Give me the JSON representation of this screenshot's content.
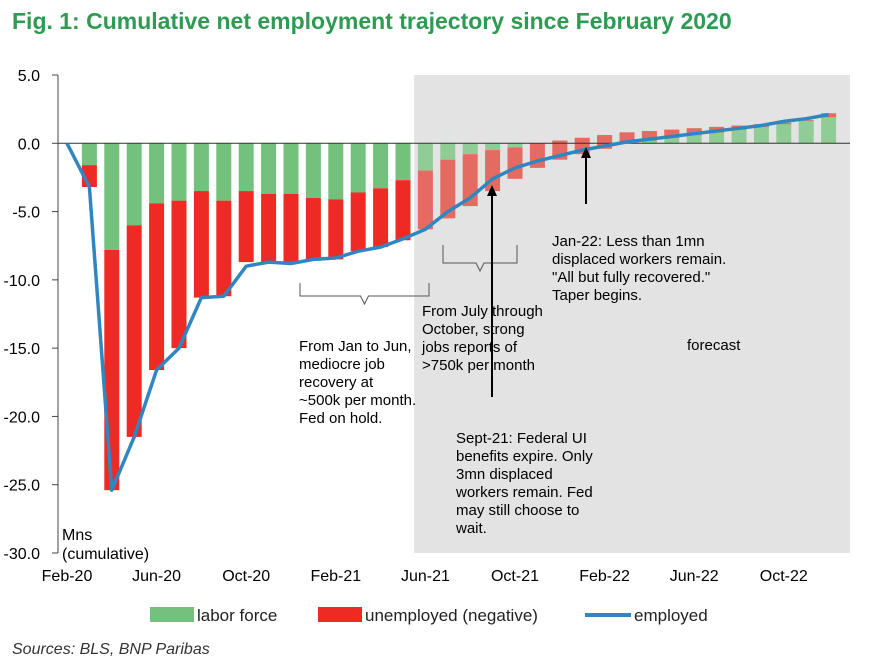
{
  "title": "Fig. 1: Cumulative net employment trajectory since February 2020",
  "source": "Sources: BLS, BNP Paribas",
  "colors": {
    "labor_force": "#74c17d",
    "labor_force_forecast": "#8fcc96",
    "unemployed": "#ee2a24",
    "unemployed_forecast": "#e56a61",
    "employed": "#2f86c0",
    "title": "#2e9a52",
    "forecast_shade": "#e3e3e3"
  },
  "chart_data": {
    "type": "bar",
    "title": "Fig. 1: Cumulative net employment trajectory since February 2020",
    "ylabel": "Mns (cumulative)",
    "ylim": [
      -30,
      5
    ],
    "yticks": [
      "5.0",
      "0.0",
      "-5.0",
      "-10.0",
      "-15.0",
      "-20.0",
      "-25.0",
      "-30.0"
    ],
    "ytick_values": [
      5,
      0,
      -5,
      -10,
      -15,
      -20,
      -25,
      -30
    ],
    "xtick_labels": [
      "Feb-20",
      "Jun-20",
      "Oct-20",
      "Feb-21",
      "Jun-21",
      "Oct-21",
      "Feb-22",
      "Jun-22",
      "Oct-22"
    ],
    "xtick_months": [
      0,
      4,
      8,
      12,
      16,
      20,
      24,
      28,
      32
    ],
    "forecast_start_month": 15.5,
    "grid": false,
    "legend_position": "bottom",
    "categories": [
      "Mar-20",
      "Apr-20",
      "May-20",
      "Jun-20",
      "Jul-20",
      "Aug-20",
      "Sep-20",
      "Oct-20",
      "Nov-20",
      "Dec-20",
      "Jan-21",
      "Feb-21",
      "Mar-21",
      "Apr-21",
      "May-21",
      "Jun-21",
      "Jul-21",
      "Aug-21",
      "Sep-21",
      "Oct-21",
      "Nov-21",
      "Dec-21",
      "Jan-22",
      "Feb-22",
      "Mar-22",
      "Apr-22",
      "May-22",
      "Jun-22",
      "Jul-22",
      "Aug-22",
      "Sep-22",
      "Oct-22",
      "Nov-22",
      "Dec-22"
    ],
    "series": [
      {
        "name": "labor force",
        "type": "bar",
        "values": [
          -1.6,
          -7.8,
          -6.0,
          -4.4,
          -4.2,
          -3.5,
          -4.2,
          -3.5,
          -3.7,
          -3.7,
          -4.0,
          -4.1,
          -3.6,
          -3.3,
          -2.7,
          -2.0,
          -1.2,
          -0.8,
          -0.5,
          -0.3,
          0.0,
          0.2,
          0.4,
          0.6,
          0.8,
          0.9,
          1.0,
          1.1,
          1.2,
          1.3,
          1.4,
          1.5,
          1.7,
          1.9
        ]
      },
      {
        "name": "unemployed (negative)",
        "type": "bar",
        "values": [
          -1.6,
          -17.6,
          -15.5,
          -12.2,
          -10.8,
          -7.8,
          -7.0,
          -5.2,
          -5.0,
          -5.0,
          -4.6,
          -4.4,
          -4.3,
          -4.3,
          -4.4,
          -4.3,
          -4.3,
          -3.8,
          -3.0,
          -2.3,
          -1.8,
          -1.4,
          -1.2,
          -1.0,
          -0.8,
          -0.7,
          -0.6,
          -0.5,
          -0.4,
          -0.3,
          -0.2,
          -0.1,
          -0.05,
          0.3
        ]
      },
      {
        "name": "employed",
        "type": "line",
        "x": [
          0,
          1,
          2,
          3,
          4,
          5,
          6,
          7,
          8,
          9,
          10,
          11,
          12,
          13,
          14,
          15,
          16,
          17,
          18,
          19,
          20,
          21,
          22,
          23,
          24,
          25,
          26,
          27,
          28,
          29,
          30,
          31,
          32,
          33,
          34
        ],
        "values": [
          0.0,
          -3.2,
          -25.4,
          -21.5,
          -16.6,
          -15.0,
          -11.3,
          -11.2,
          -9.0,
          -8.7,
          -8.8,
          -8.5,
          -8.4,
          -7.9,
          -7.6,
          -7.0,
          -6.3,
          -5.0,
          -4.0,
          -2.6,
          -1.8,
          -1.3,
          -0.9,
          -0.5,
          -0.2,
          0.1,
          0.3,
          0.5,
          0.7,
          0.9,
          1.1,
          1.3,
          1.6,
          1.8,
          2.1
        ]
      }
    ],
    "annotations": [
      {
        "lines": [
          "From Jan to Jun,",
          "mediocre job",
          "recovery at",
          "~500k per month.",
          "Fed on hold."
        ]
      },
      {
        "lines": [
          "From July through",
          "October, strong",
          "jobs reports of",
          ">750k per month"
        ]
      },
      {
        "lines": [
          "Jan-22: Less than 1mn",
          "displaced workers remain.",
          "\"All but fully recovered.\"",
          "Taper begins."
        ]
      },
      {
        "lines": [
          "Sept-21: Federal UI",
          "benefits expire. Only",
          "3mn displaced",
          "workers remain. Fed",
          "may still choose to",
          "wait."
        ]
      },
      {
        "lines": [
          "forecast"
        ]
      }
    ]
  }
}
